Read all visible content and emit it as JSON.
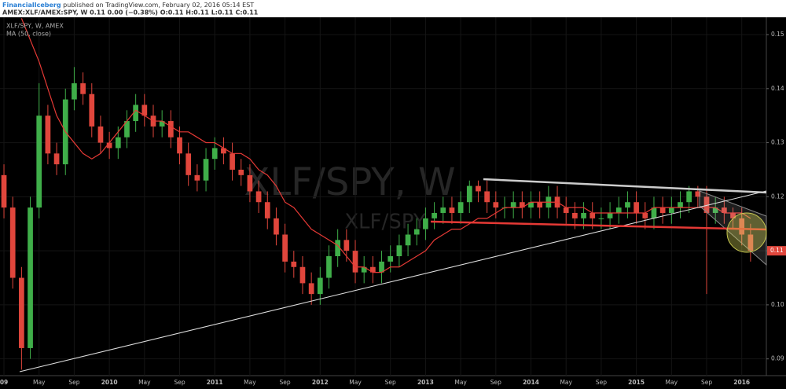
{
  "chart_data": {
    "type": "candlestick",
    "publisher": "FinancialIceberg",
    "published_text": "published on TradingView.com, February 02, 2016 05:14 EST",
    "symbol_line": "AMEX:XLF/AMEX:SPY, W  0.11 0.00 (−0.38%)  O:0.11 H:0.11 L:0.11 C:0.11",
    "legend_title": "XLF/SPY, W, AMEX",
    "watermark": "XLF/SPY, W",
    "watermark_small": "XLF/SPY",
    "x": [
      0,
      1,
      2,
      3,
      4,
      5,
      6,
      7,
      8,
      9,
      10,
      11,
      12,
      13,
      14,
      15,
      16,
      17,
      18,
      19,
      20,
      21,
      22,
      23,
      24,
      25,
      26,
      27,
      28,
      29,
      30,
      31,
      32,
      33,
      34,
      35,
      36,
      37,
      38,
      39,
      40,
      41,
      42,
      43,
      44,
      45,
      46,
      47,
      48,
      49,
      50,
      51,
      52,
      53,
      54,
      55,
      56,
      57,
      58,
      59,
      60,
      61,
      62,
      63,
      64,
      65,
      66,
      67,
      68,
      69,
      70,
      71,
      72,
      73,
      74,
      75,
      76,
      77,
      78,
      79,
      80,
      81,
      82,
      83,
      84,
      85
    ],
    "open": [
      0.124,
      0.118,
      0.105,
      0.092,
      0.118,
      0.135,
      0.128,
      0.126,
      0.138,
      0.141,
      0.139,
      0.133,
      0.13,
      0.129,
      0.131,
      0.134,
      0.137,
      0.135,
      0.133,
      0.134,
      0.131,
      0.128,
      0.124,
      0.123,
      0.127,
      0.129,
      0.128,
      0.125,
      0.124,
      0.121,
      0.119,
      0.116,
      0.113,
      0.108,
      0.107,
      0.104,
      0.102,
      0.105,
      0.109,
      0.112,
      0.11,
      0.106,
      0.107,
      0.106,
      0.108,
      0.109,
      0.111,
      0.113,
      0.114,
      0.116,
      0.117,
      0.118,
      0.117,
      0.119,
      0.122,
      0.121,
      0.119,
      0.118,
      0.118,
      0.119,
      0.118,
      0.119,
      0.118,
      0.12,
      0.118,
      0.117,
      0.116,
      0.117,
      0.116,
      0.116,
      0.117,
      0.118,
      0.119,
      0.117,
      0.116,
      0.118,
      0.117,
      0.118,
      0.119,
      0.121,
      0.12,
      0.117,
      0.118,
      0.117,
      0.116,
      0.113
    ],
    "high": [
      0.126,
      0.12,
      0.107,
      0.12,
      0.141,
      0.137,
      0.13,
      0.14,
      0.144,
      0.143,
      0.141,
      0.135,
      0.132,
      0.133,
      0.136,
      0.139,
      0.139,
      0.137,
      0.136,
      0.136,
      0.133,
      0.13,
      0.126,
      0.129,
      0.131,
      0.131,
      0.13,
      0.127,
      0.126,
      0.123,
      0.121,
      0.118,
      0.115,
      0.11,
      0.109,
      0.106,
      0.107,
      0.111,
      0.114,
      0.114,
      0.112,
      0.109,
      0.109,
      0.11,
      0.111,
      0.113,
      0.115,
      0.116,
      0.118,
      0.119,
      0.12,
      0.12,
      0.121,
      0.123,
      0.123,
      0.123,
      0.121,
      0.12,
      0.121,
      0.121,
      0.121,
      0.121,
      0.122,
      0.122,
      0.12,
      0.119,
      0.119,
      0.119,
      0.118,
      0.119,
      0.12,
      0.121,
      0.121,
      0.119,
      0.12,
      0.12,
      0.12,
      0.121,
      0.122,
      0.122,
      0.122,
      0.12,
      0.12,
      0.118,
      0.118,
      0.115
    ],
    "low": [
      0.116,
      0.103,
      0.088,
      0.09,
      0.116,
      0.126,
      0.124,
      0.124,
      0.136,
      0.137,
      0.131,
      0.128,
      0.127,
      0.127,
      0.129,
      0.132,
      0.133,
      0.131,
      0.131,
      0.129,
      0.126,
      0.122,
      0.121,
      0.121,
      0.125,
      0.126,
      0.123,
      0.122,
      0.119,
      0.117,
      0.114,
      0.111,
      0.106,
      0.105,
      0.102,
      0.1,
      0.1,
      0.103,
      0.107,
      0.108,
      0.104,
      0.104,
      0.104,
      0.104,
      0.106,
      0.107,
      0.109,
      0.111,
      0.112,
      0.114,
      0.115,
      0.115,
      0.115,
      0.117,
      0.119,
      0.117,
      0.116,
      0.116,
      0.116,
      0.116,
      0.116,
      0.116,
      0.116,
      0.116,
      0.115,
      0.114,
      0.114,
      0.114,
      0.114,
      0.114,
      0.115,
      0.116,
      0.115,
      0.114,
      0.114,
      0.115,
      0.115,
      0.116,
      0.117,
      0.118,
      0.102,
      0.115,
      0.115,
      0.114,
      0.111,
      0.108
    ],
    "close": [
      0.118,
      0.105,
      0.092,
      0.118,
      0.135,
      0.128,
      0.126,
      0.138,
      0.141,
      0.139,
      0.133,
      0.13,
      0.129,
      0.131,
      0.134,
      0.137,
      0.135,
      0.133,
      0.134,
      0.131,
      0.128,
      0.124,
      0.123,
      0.127,
      0.129,
      0.128,
      0.125,
      0.124,
      0.121,
      0.119,
      0.116,
      0.113,
      0.108,
      0.107,
      0.104,
      0.102,
      0.105,
      0.109,
      0.112,
      0.11,
      0.106,
      0.107,
      0.106,
      0.108,
      0.109,
      0.111,
      0.113,
      0.114,
      0.116,
      0.117,
      0.118,
      0.117,
      0.119,
      0.122,
      0.121,
      0.119,
      0.118,
      0.118,
      0.119,
      0.118,
      0.119,
      0.118,
      0.12,
      0.118,
      0.117,
      0.116,
      0.117,
      0.116,
      0.116,
      0.117,
      0.118,
      0.119,
      0.117,
      0.116,
      0.118,
      0.117,
      0.118,
      0.119,
      0.121,
      0.12,
      0.117,
      0.118,
      0.117,
      0.116,
      0.113,
      0.11
    ],
    "up_color": "#3fae49",
    "down_color": "#e0463c",
    "series": [
      {
        "name": "MA (50, close)",
        "color": "#e53935",
        "values": [
          null,
          null,
          0.153,
          0.149,
          0.145,
          0.14,
          0.135,
          0.132,
          0.13,
          0.128,
          0.127,
          0.128,
          0.13,
          0.132,
          0.134,
          0.136,
          0.135,
          0.134,
          0.134,
          0.133,
          0.132,
          0.132,
          0.131,
          0.13,
          0.13,
          0.129,
          0.128,
          0.128,
          0.127,
          0.125,
          0.124,
          0.122,
          0.119,
          0.118,
          0.116,
          0.114,
          0.113,
          0.112,
          0.111,
          0.109,
          0.107,
          0.107,
          0.106,
          0.106,
          0.107,
          0.107,
          0.108,
          0.109,
          0.11,
          0.112,
          0.113,
          0.114,
          0.114,
          0.115,
          0.116,
          0.116,
          0.117,
          0.118,
          0.118,
          0.118,
          0.119,
          0.119,
          0.119,
          0.119,
          0.118,
          0.118,
          0.118,
          0.117,
          0.117,
          0.117,
          0.117,
          0.117,
          0.117,
          0.117,
          0.118,
          0.118,
          0.118,
          0.118,
          0.118,
          0.118,
          0.118,
          0.118,
          0.117,
          0.117,
          0.117,
          0.116
        ]
      }
    ],
    "last_price": 0.11,
    "xlim": [
      -0.45,
      86.8
    ],
    "ylim": [
      0.0869,
      0.1532
    ],
    "xticks": [
      {
        "value": 0,
        "label": "09"
      },
      {
        "value": 4,
        "label": "May"
      },
      {
        "value": 8,
        "label": "Sep"
      },
      {
        "value": 12,
        "label": "2010"
      },
      {
        "value": 16,
        "label": "May"
      },
      {
        "value": 20,
        "label": "Sep"
      },
      {
        "value": 24,
        "label": "2011"
      },
      {
        "value": 28,
        "label": "May"
      },
      {
        "value": 32,
        "label": "Sep"
      },
      {
        "value": 36,
        "label": "2012"
      },
      {
        "value": 40,
        "label": "May"
      },
      {
        "value": 44,
        "label": "Sep"
      },
      {
        "value": 48,
        "label": "2013"
      },
      {
        "value": 52,
        "label": "May"
      },
      {
        "value": 56,
        "label": "Sep"
      },
      {
        "value": 60,
        "label": "2014"
      },
      {
        "value": 64,
        "label": "May"
      },
      {
        "value": 68,
        "label": "Sep"
      },
      {
        "value": 72,
        "label": "2015"
      },
      {
        "value": 76,
        "label": "May"
      },
      {
        "value": 80,
        "label": "Sep"
      },
      {
        "value": 84,
        "label": "2016"
      }
    ],
    "yticks": [
      0.09,
      {
        "value": 0.1,
        "label": "0.10"
      },
      0.11,
      0.12,
      0.13,
      0.14,
      0.15
    ],
    "grid": true
  }
}
